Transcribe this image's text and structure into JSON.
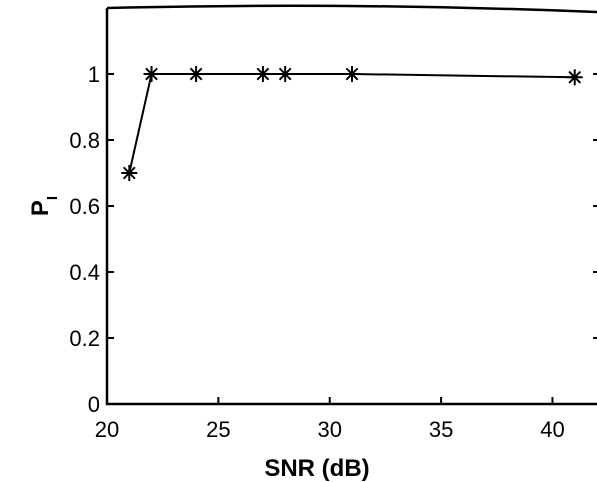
{
  "chart_data": {
    "type": "line",
    "xlabel": "SNR (dB)",
    "ylabel": "P",
    "ylabel_subscript": "I",
    "xlim": [
      20,
      42
    ],
    "ylim": [
      0,
      1.2
    ],
    "x_ticks": [
      20,
      25,
      30,
      35,
      40
    ],
    "x_tick_labels": [
      "20",
      "25",
      "30",
      "35",
      "40"
    ],
    "y_ticks": [
      0,
      0.2,
      0.4,
      0.6,
      0.8,
      1
    ],
    "y_tick_labels": [
      "0",
      "0.2",
      "0.4",
      "0.6",
      "0.8",
      "1"
    ],
    "grid": false,
    "marker": "asterisk",
    "series": [
      {
        "x": [
          21,
          22,
          24,
          27,
          28,
          31,
          41
        ],
        "y": [
          0.7,
          1.0,
          1.0,
          1.0,
          1.0,
          1.0,
          0.99
        ]
      }
    ]
  }
}
